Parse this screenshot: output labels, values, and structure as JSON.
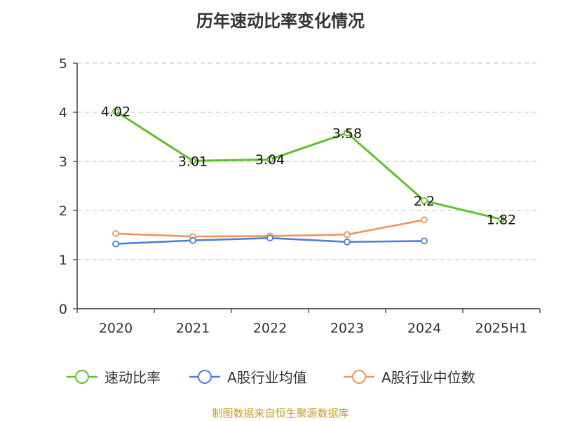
{
  "chart_data": {
    "type": "line",
    "title": "历年速动比率变化情况",
    "categories": [
      "2020",
      "2021",
      "2022",
      "2023",
      "2024",
      "2025H1"
    ],
    "ylim": [
      0,
      5
    ],
    "yticks": [
      "0",
      "1",
      "2",
      "3",
      "4",
      "5"
    ],
    "grid": true,
    "legend_position": "bottom",
    "series": [
      {
        "name": "速动比率",
        "color": "#5cc22a",
        "values": [
          4.02,
          3.01,
          3.04,
          3.58,
          2.2,
          1.82
        ],
        "labels": [
          "4.02",
          "3.01",
          "3.04",
          "3.58",
          "2.2",
          "1.82"
        ]
      },
      {
        "name": "A股行业均值",
        "color": "#4a7fdc",
        "values": [
          1.32,
          1.39,
          1.44,
          1.36,
          1.38,
          null
        ]
      },
      {
        "name": "A股行业中位数",
        "color": "#f5925e",
        "values": [
          1.53,
          1.47,
          1.48,
          1.51,
          1.81,
          null
        ]
      }
    ]
  },
  "source": "制图数据来自恒生聚源数据库"
}
